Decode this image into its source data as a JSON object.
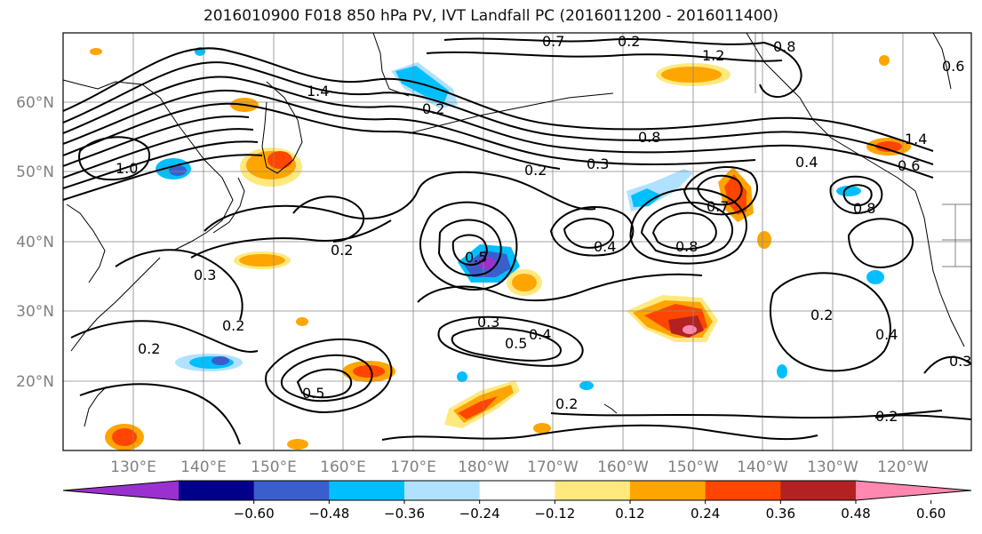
{
  "title": "2016010900 F018 850 hPa PV, IVT Landfall PC (2016011200 - 2016011400)",
  "map": {
    "lat_labels": [
      "60°N",
      "50°N",
      "40°N",
      "30°N",
      "20°N"
    ],
    "lon_labels": [
      "130°E",
      "140°E",
      "150°E",
      "160°E",
      "170°E",
      "180°W",
      "170°W",
      "160°W",
      "150°W",
      "140°W",
      "130°W",
      "120°W"
    ],
    "contour_labels": [
      {
        "text": "1.4"
      },
      {
        "text": "1.2"
      },
      {
        "text": "1.0"
      },
      {
        "text": "0.8"
      },
      {
        "text": "0.7"
      },
      {
        "text": "0.2"
      },
      {
        "text": "0.2"
      },
      {
        "text": "0.2"
      },
      {
        "text": "0.3"
      },
      {
        "text": "0.2"
      },
      {
        "text": "0.5"
      },
      {
        "text": "0.4"
      },
      {
        "text": "0.5"
      },
      {
        "text": "0.3"
      },
      {
        "text": "0.4"
      },
      {
        "text": "0.2"
      },
      {
        "text": "0.2"
      },
      {
        "text": "0.2"
      },
      {
        "text": "0.8"
      },
      {
        "text": "0.6"
      },
      {
        "text": "0.8"
      },
      {
        "text": "0.7"
      },
      {
        "text": "0.4"
      },
      {
        "text": "0.2"
      },
      {
        "text": "0.5"
      },
      {
        "text": "0.3"
      },
      {
        "text": "0.8"
      },
      {
        "text": "0.4"
      },
      {
        "text": "1.4"
      },
      {
        "text": "0.6"
      },
      {
        "text": "0.3"
      },
      {
        "text": "0.2"
      }
    ]
  },
  "colorbar": {
    "tick_labels": [
      "−0.60",
      "−0.48",
      "−0.36",
      "−0.24",
      "−0.12",
      "0.12",
      "0.24",
      "0.36",
      "0.48",
      "0.60"
    ],
    "colors": [
      "#9b30d0",
      "#00008b",
      "#3a5fcd",
      "#00bfff",
      "#b0e2ff",
      "#ffffff",
      "#ffe97f",
      "#ffa500",
      "#ff4500",
      "#b22222",
      "#ff88b0"
    ]
  }
}
